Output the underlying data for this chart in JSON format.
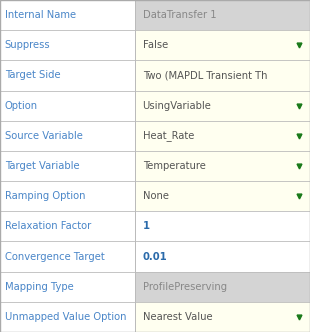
{
  "rows": [
    {
      "label": "Internal Name",
      "value": "DataTransfer 1",
      "dropdown": false,
      "label_bg": "#ffffff",
      "value_bg": "#d4d4d4"
    },
    {
      "label": "Suppress",
      "value": "False",
      "dropdown": true,
      "label_bg": "#ffffff",
      "value_bg": "#fffff0"
    },
    {
      "label": "Target Side",
      "value": "Two (MAPDL Transient Th",
      "dropdown": false,
      "label_bg": "#ffffff",
      "value_bg": "#fffff0"
    },
    {
      "label": "Option",
      "value": "UsingVariable",
      "dropdown": true,
      "label_bg": "#ffffff",
      "value_bg": "#fffff0"
    },
    {
      "label": "Source Variable",
      "value": "Heat_Rate",
      "dropdown": true,
      "label_bg": "#ffffff",
      "value_bg": "#fffff0"
    },
    {
      "label": "Target Variable",
      "value": "Temperature",
      "dropdown": true,
      "label_bg": "#ffffff",
      "value_bg": "#fffff0"
    },
    {
      "label": "Ramping Option",
      "value": "None",
      "dropdown": true,
      "label_bg": "#ffffff",
      "value_bg": "#fffff0"
    },
    {
      "label": "Relaxation Factor",
      "value": "1",
      "dropdown": false,
      "label_bg": "#ffffff",
      "value_bg": "#ffffff"
    },
    {
      "label": "Convergence Target",
      "value": "0.01",
      "dropdown": false,
      "label_bg": "#ffffff",
      "value_bg": "#ffffff"
    },
    {
      "label": "Mapping Type",
      "value": "ProfilePreserving",
      "dropdown": false,
      "label_bg": "#ffffff",
      "value_bg": "#d4d4d4"
    },
    {
      "label": "Unmapped Value Option",
      "value": "Nearest Value",
      "dropdown": true,
      "label_bg": "#ffffff",
      "value_bg": "#fffff0"
    }
  ],
  "label_color": "#4a86c8",
  "value_color_normal": "#555555",
  "value_color_blue": "#2a6aaa",
  "value_color_gray": "#888888",
  "dropdown_color": "#1a7a1a",
  "border_color": "#bbbbbb",
  "outer_border_color": "#aaaaaa",
  "fig_bg": "#f5f5f5",
  "col_split": 0.435,
  "font_size": 7.2,
  "figw": 3.1,
  "figh": 3.32,
  "dpi": 100
}
